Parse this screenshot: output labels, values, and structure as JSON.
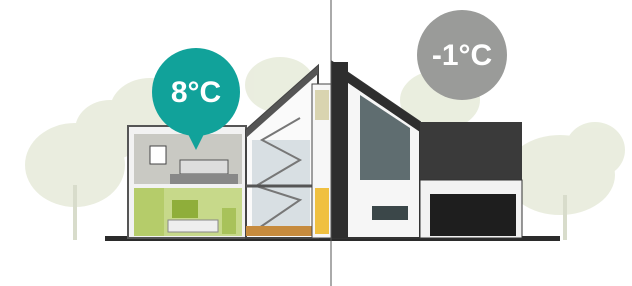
{
  "inside_temperature": "8°C",
  "outside_temperature": "-1°C"
}
